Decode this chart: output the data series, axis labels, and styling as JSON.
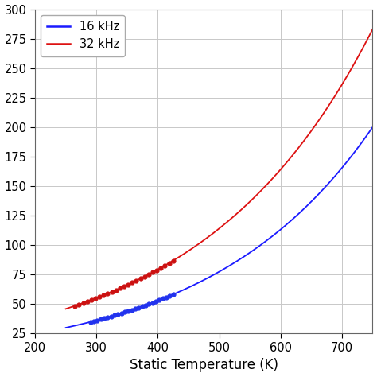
{
  "xlabel": "Static Temperature (K)",
  "xlim": [
    200,
    750
  ],
  "ylim": [
    25,
    300
  ],
  "yticks": [
    25,
    50,
    75,
    100,
    125,
    150,
    175,
    200,
    225,
    250,
    275,
    300
  ],
  "xticks": [
    200,
    300,
    400,
    500,
    600,
    700
  ],
  "line1_color": "#1a1aff",
  "line2_color": "#dd1111",
  "dot_color_blue": "#2233ee",
  "dot_color_red": "#cc1111",
  "legend_labels": [
    "16 kHz",
    "32 kHz"
  ],
  "background_color": "#ffffff",
  "grid_color": "#c8c8c8",
  "n_blue": 2.15,
  "a_blue_ref_T": 250,
  "a_blue_ref_y": 30,
  "n_red": 2.15,
  "a_red_ref_T": 250,
  "a_red_ref_y": 46,
  "T_start": 250,
  "T_end": 750,
  "dots_blue_start": 290,
  "dots_blue_end": 425,
  "dots_red_start": 265,
  "dots_red_end": 425,
  "n_dots": 25
}
